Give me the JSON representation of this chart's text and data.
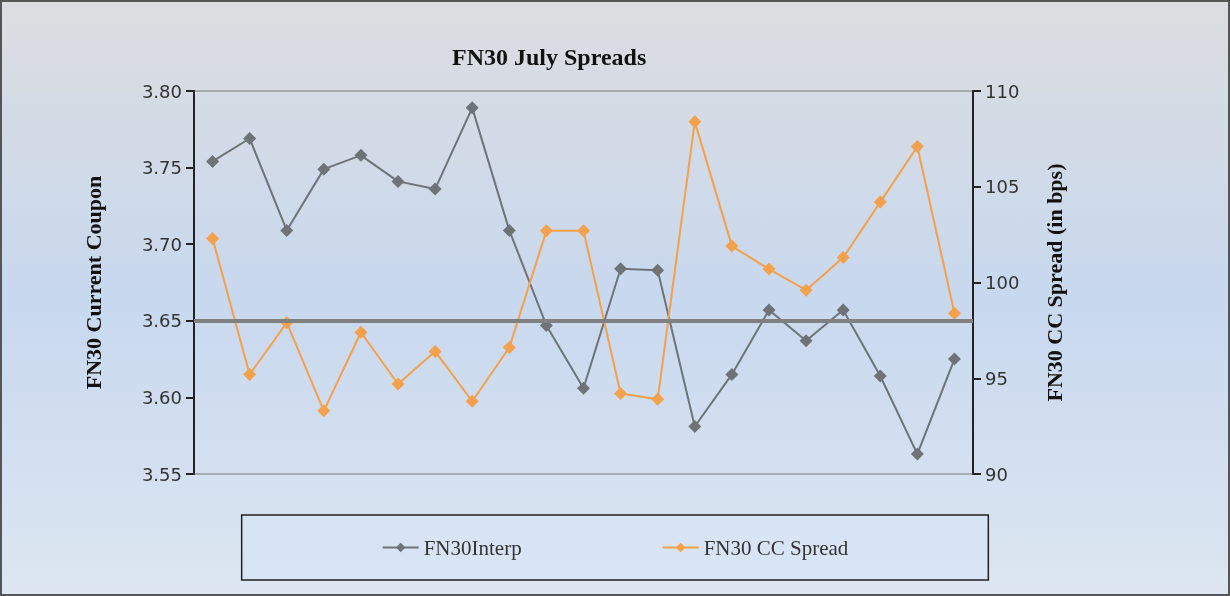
{
  "chart_data": {
    "type": "line",
    "title": "FN30 July Spreads",
    "ylabel": "FN30 Current Coupon",
    "y2label": "FN30 CC Spread (in bps)",
    "categories": [
      null,
      null,
      null,
      null,
      null,
      null,
      null,
      null,
      null,
      null,
      null,
      null,
      null,
      null,
      null,
      null,
      null,
      null,
      null,
      null,
      null
    ],
    "series": [
      {
        "name": "FN30Interp",
        "color": "#6e7378",
        "values": [
          3.754,
          3.769,
          3.709,
          3.749,
          3.758,
          3.741,
          3.736,
          3.789,
          3.709,
          3.647,
          3.606,
          3.684,
          3.683,
          3.581,
          3.615,
          3.657,
          3.637,
          3.657,
          3.614,
          3.563,
          3.625
        ]
      },
      {
        "name": "FN30 CC Spread",
        "color": "#f5a04a",
        "axis": "y2",
        "values": [
          102.3,
          95.2,
          97.9,
          93.3,
          97.4,
          94.7,
          96.4,
          93.8,
          96.6,
          102.7,
          102.7,
          94.2,
          93.9,
          108.4,
          101.9,
          100.7,
          99.6,
          101.3,
          104.2,
          107.1,
          98.4
        ]
      }
    ],
    "ylim": [
      3.55,
      3.8
    ],
    "yticks": [
      {
        "value": 3.55,
        "label": "3.55"
      },
      {
        "value": 3.6,
        "label": "3.60"
      },
      {
        "value": 3.65,
        "label": "3.65"
      },
      {
        "value": 3.7,
        "label": "3.70"
      },
      {
        "value": 3.75,
        "label": "3.75"
      },
      {
        "value": 3.8,
        "label": "3.80"
      }
    ],
    "y2lim": [
      90,
      110
    ],
    "y2ticks": [
      90,
      95,
      100,
      105,
      110
    ],
    "ref_lines": [
      {
        "axis": "y",
        "value": 3.65,
        "color": "#808080"
      }
    ],
    "marker": "diamond",
    "line_style": "solid",
    "grid": false,
    "legend": "bottom"
  }
}
